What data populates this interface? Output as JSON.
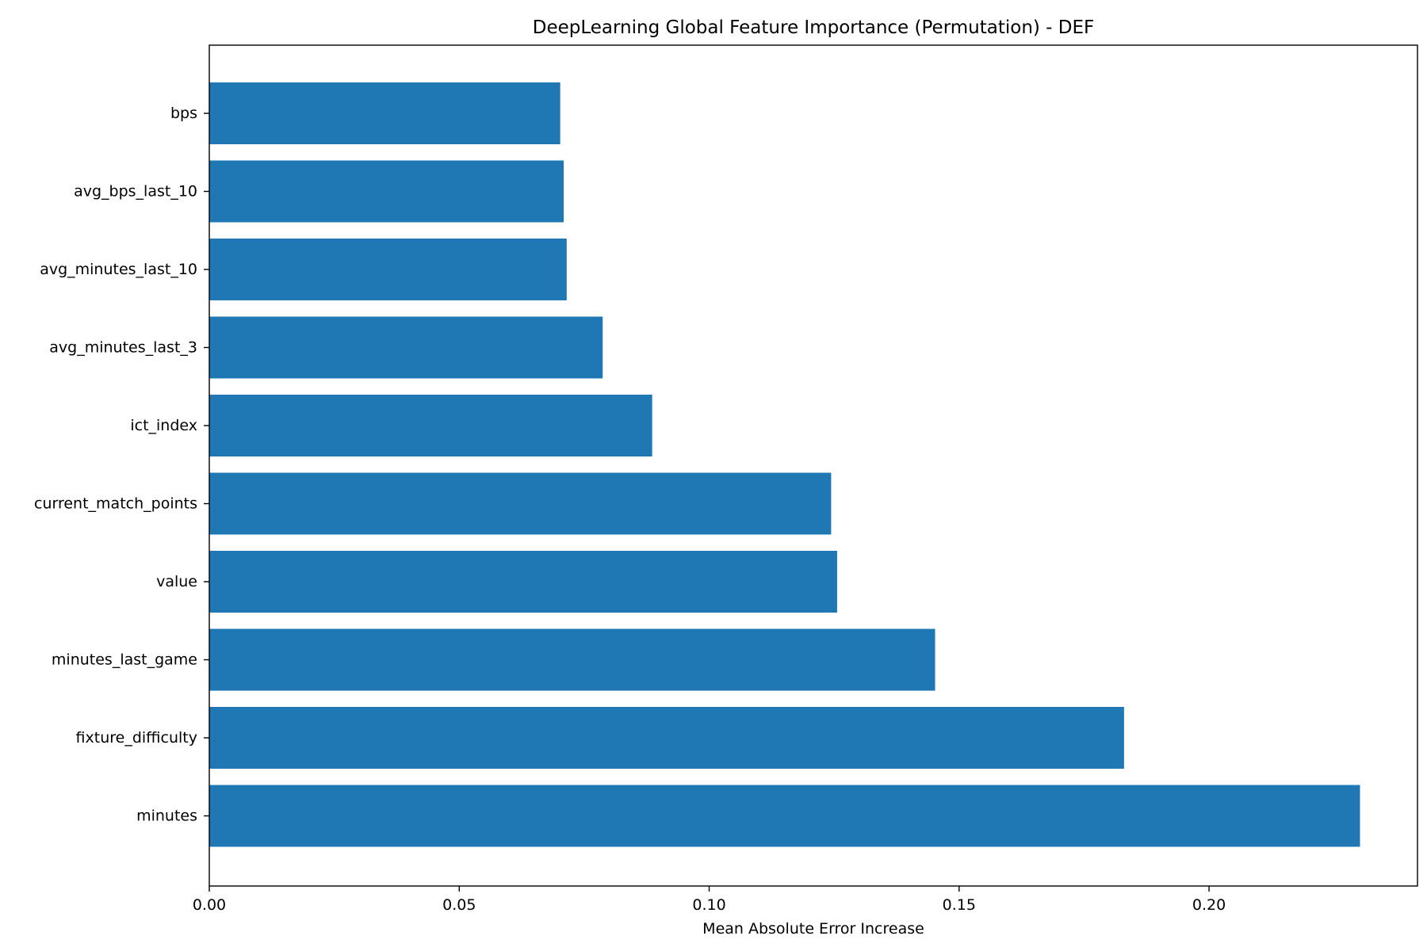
{
  "chart_data": {
    "type": "bar",
    "orientation": "horizontal",
    "title": "DeepLearning Global Feature Importance (Permutation) - DEF",
    "xlabel": "Mean Absolute Error Increase",
    "ylabel": "",
    "categories": [
      "bps",
      "avg_bps_last_10",
      "avg_minutes_last_10",
      "avg_minutes_last_3",
      "ict_index",
      "current_match_points",
      "value",
      "minutes_last_game",
      "fixture_difficulty",
      "minutes"
    ],
    "values": [
      0.0702,
      0.0709,
      0.0715,
      0.0787,
      0.0886,
      0.1244,
      0.1256,
      0.1452,
      0.183,
      0.2302
    ],
    "xlim": [
      0,
      0.2417
    ],
    "xticks": [
      0.0,
      0.05,
      0.1,
      0.15,
      0.2
    ],
    "xtick_labels": [
      "0.00",
      "0.05",
      "0.10",
      "0.15",
      "0.20"
    ],
    "bar_color": "#1f77b4",
    "grid": false,
    "legend": "none"
  }
}
